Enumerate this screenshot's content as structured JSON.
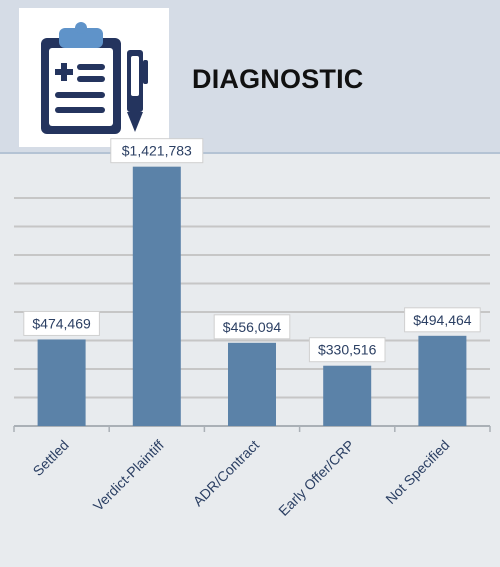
{
  "header": {
    "title": "DIAGNOSTIC",
    "icon": "clipboard-medical-report-icon"
  },
  "colors": {
    "header_bg": "#d5dce6",
    "chart_bg": "#e8ebee",
    "bar": "#5b82a8",
    "icon_navy": "#24345e",
    "icon_clip": "#5f93c9",
    "gridline": "#c6c6c6",
    "label_text": "#2b3f63"
  },
  "chart_data": {
    "type": "bar",
    "title": "",
    "xlabel": "",
    "ylabel": "",
    "categories": [
      "Settled",
      "Verdict-Plaintiff",
      "ADR/Contract",
      "Early Offer/CRP",
      "Not Specified"
    ],
    "values": [
      474469,
      1421783,
      456094,
      330516,
      494464
    ],
    "data_labels": [
      "$474,469",
      "$1,421,783",
      "$456,094",
      "$330,516",
      "$494,464"
    ],
    "ylim": [
      0,
      2000000
    ],
    "grid": true,
    "legend": "none"
  }
}
